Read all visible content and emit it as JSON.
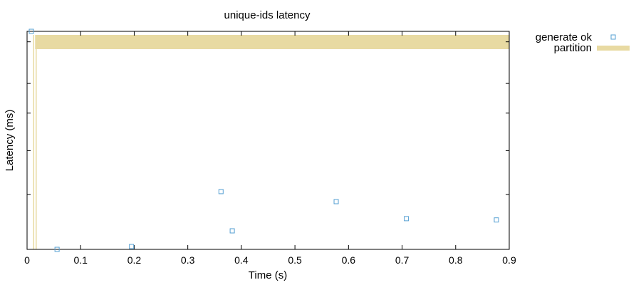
{
  "chart_data": {
    "type": "scatter",
    "title": "unique-ids latency",
    "xlabel": "Time (s)",
    "ylabel": "Latency (ms)",
    "xlim": [
      0,
      0.9
    ],
    "x_ticks": [
      "0",
      "0.1",
      "0.2",
      "0.3",
      "0.4",
      "0.5",
      "0.6",
      "0.7",
      "0.8",
      "0.9"
    ],
    "y_scale": "log",
    "y_tick_labels_visible": false,
    "legend_position": "top-right outside",
    "series": [
      {
        "name": "generate ok",
        "marker": "square",
        "color": "#56a0d3",
        "x": [
          0.008,
          0.056,
          0.195,
          0.362,
          0.383,
          0.577,
          0.708,
          0.876
        ],
        "y": [
          1.0,
          0.0,
          0.013,
          0.265,
          0.085,
          0.219,
          0.141,
          0.135
        ]
      }
    ],
    "shaded_regions": [
      {
        "name": "partition",
        "color": "#e8daa2",
        "x_start": 0.015,
        "x_end": 0.9
      }
    ]
  }
}
